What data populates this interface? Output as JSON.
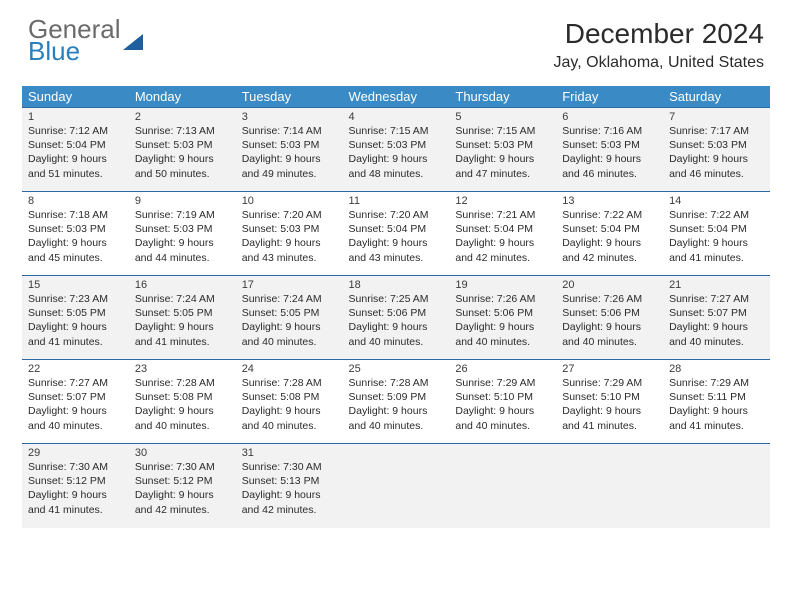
{
  "logo": {
    "line1": "General",
    "line2": "Blue"
  },
  "title": "December 2024",
  "location": "Jay, Oklahoma, United States",
  "colors": {
    "header_bg": "#3a8ac6",
    "header_fg": "#ffffff",
    "row_stripe": "#f2f2f2",
    "cell_border": "#2a6aa0",
    "logo_gray": "#6b6b6b",
    "logo_blue": "#2a7fbf"
  },
  "weekdays": [
    "Sunday",
    "Monday",
    "Tuesday",
    "Wednesday",
    "Thursday",
    "Friday",
    "Saturday"
  ],
  "weeks": [
    [
      {
        "n": "1",
        "r": "7:12 AM",
        "s": "5:04 PM",
        "d": "9 hours and 51 minutes."
      },
      {
        "n": "2",
        "r": "7:13 AM",
        "s": "5:03 PM",
        "d": "9 hours and 50 minutes."
      },
      {
        "n": "3",
        "r": "7:14 AM",
        "s": "5:03 PM",
        "d": "9 hours and 49 minutes."
      },
      {
        "n": "4",
        "r": "7:15 AM",
        "s": "5:03 PM",
        "d": "9 hours and 48 minutes."
      },
      {
        "n": "5",
        "r": "7:15 AM",
        "s": "5:03 PM",
        "d": "9 hours and 47 minutes."
      },
      {
        "n": "6",
        "r": "7:16 AM",
        "s": "5:03 PM",
        "d": "9 hours and 46 minutes."
      },
      {
        "n": "7",
        "r": "7:17 AM",
        "s": "5:03 PM",
        "d": "9 hours and 46 minutes."
      }
    ],
    [
      {
        "n": "8",
        "r": "7:18 AM",
        "s": "5:03 PM",
        "d": "9 hours and 45 minutes."
      },
      {
        "n": "9",
        "r": "7:19 AM",
        "s": "5:03 PM",
        "d": "9 hours and 44 minutes."
      },
      {
        "n": "10",
        "r": "7:20 AM",
        "s": "5:03 PM",
        "d": "9 hours and 43 minutes."
      },
      {
        "n": "11",
        "r": "7:20 AM",
        "s": "5:04 PM",
        "d": "9 hours and 43 minutes."
      },
      {
        "n": "12",
        "r": "7:21 AM",
        "s": "5:04 PM",
        "d": "9 hours and 42 minutes."
      },
      {
        "n": "13",
        "r": "7:22 AM",
        "s": "5:04 PM",
        "d": "9 hours and 42 minutes."
      },
      {
        "n": "14",
        "r": "7:22 AM",
        "s": "5:04 PM",
        "d": "9 hours and 41 minutes."
      }
    ],
    [
      {
        "n": "15",
        "r": "7:23 AM",
        "s": "5:05 PM",
        "d": "9 hours and 41 minutes."
      },
      {
        "n": "16",
        "r": "7:24 AM",
        "s": "5:05 PM",
        "d": "9 hours and 41 minutes."
      },
      {
        "n": "17",
        "r": "7:24 AM",
        "s": "5:05 PM",
        "d": "9 hours and 40 minutes."
      },
      {
        "n": "18",
        "r": "7:25 AM",
        "s": "5:06 PM",
        "d": "9 hours and 40 minutes."
      },
      {
        "n": "19",
        "r": "7:26 AM",
        "s": "5:06 PM",
        "d": "9 hours and 40 minutes."
      },
      {
        "n": "20",
        "r": "7:26 AM",
        "s": "5:06 PM",
        "d": "9 hours and 40 minutes."
      },
      {
        "n": "21",
        "r": "7:27 AM",
        "s": "5:07 PM",
        "d": "9 hours and 40 minutes."
      }
    ],
    [
      {
        "n": "22",
        "r": "7:27 AM",
        "s": "5:07 PM",
        "d": "9 hours and 40 minutes."
      },
      {
        "n": "23",
        "r": "7:28 AM",
        "s": "5:08 PM",
        "d": "9 hours and 40 minutes."
      },
      {
        "n": "24",
        "r": "7:28 AM",
        "s": "5:08 PM",
        "d": "9 hours and 40 minutes."
      },
      {
        "n": "25",
        "r": "7:28 AM",
        "s": "5:09 PM",
        "d": "9 hours and 40 minutes."
      },
      {
        "n": "26",
        "r": "7:29 AM",
        "s": "5:10 PM",
        "d": "9 hours and 40 minutes."
      },
      {
        "n": "27",
        "r": "7:29 AM",
        "s": "5:10 PM",
        "d": "9 hours and 41 minutes."
      },
      {
        "n": "28",
        "r": "7:29 AM",
        "s": "5:11 PM",
        "d": "9 hours and 41 minutes."
      }
    ],
    [
      {
        "n": "29",
        "r": "7:30 AM",
        "s": "5:12 PM",
        "d": "9 hours and 41 minutes."
      },
      {
        "n": "30",
        "r": "7:30 AM",
        "s": "5:12 PM",
        "d": "9 hours and 42 minutes."
      },
      {
        "n": "31",
        "r": "7:30 AM",
        "s": "5:13 PM",
        "d": "9 hours and 42 minutes."
      },
      null,
      null,
      null,
      null
    ]
  ],
  "labels": {
    "sunrise": "Sunrise:",
    "sunset": "Sunset:",
    "daylight": "Daylight:"
  }
}
